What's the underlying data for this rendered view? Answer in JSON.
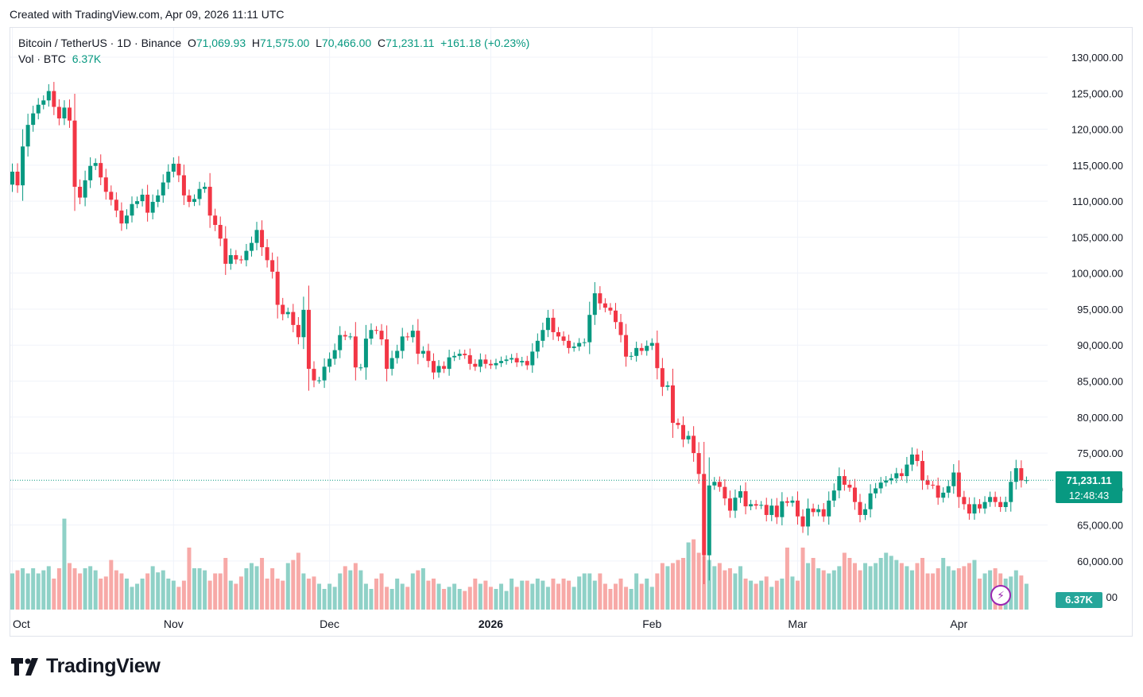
{
  "header": {
    "created": "Created with TradingView.com, Apr 09, 2026 11:11 UTC"
  },
  "legend": {
    "symbol": "Bitcoin / TetherUS · 1D · Binance",
    "open_label": "O",
    "open": "71,069.93",
    "high_label": "H",
    "high": "71,575.00",
    "low_label": "L",
    "low": "70,466.00",
    "close_label": "C",
    "close": "71,231.11",
    "change": "+161.18 (+0.23%)",
    "vol_label": "Vol · BTC",
    "vol": "6.37K"
  },
  "price_tag": {
    "price": "71,231.11",
    "countdown": "12:48:43"
  },
  "vol_tag": "6.37K",
  "footer": {
    "brand": "TradingView"
  },
  "colors": {
    "up": "#089981",
    "down": "#f23645",
    "vol_up": "#8fd1c7",
    "vol_down": "#f7a9a7",
    "grid": "#f0f3fa"
  },
  "chart_data": {
    "type": "candlestick",
    "symbol": "BTCUSDT",
    "interval": "1D",
    "x_labels": [
      {
        "label": "Oct",
        "index": 0
      },
      {
        "label": "Nov",
        "index": 31
      },
      {
        "label": "Dec",
        "index": 61
      },
      {
        "label": "2026",
        "index": 92,
        "bold": true
      },
      {
        "label": "Feb",
        "index": 123
      },
      {
        "label": "Mar",
        "index": 151
      },
      {
        "label": "Apr",
        "index": 182
      }
    ],
    "y_ticks": [
      60000,
      65000,
      70000,
      75000,
      80000,
      85000,
      90000,
      95000,
      100000,
      105000,
      110000,
      115000,
      120000,
      125000,
      130000
    ],
    "y_tick_labels": [
      "60,000.00",
      "65,000.00",
      "70,000.00",
      "75,000.00",
      "80,000.00",
      "85,000.00",
      "90,000.00",
      "95,000.00",
      "100,000.00",
      "105,000.00",
      "110,000.00",
      "115,000.00",
      "120,000.00",
      "125,000.00",
      "130,000.00"
    ],
    "bottom_tick_label": "00",
    "ylim": [
      56000,
      132000
    ],
    "last_price": 71231.11,
    "closes": [
      114100,
      112200,
      117600,
      120600,
      122200,
      123400,
      124000,
      125300,
      123100,
      121500,
      123000,
      121200,
      112000,
      110500,
      112900,
      114900,
      115300,
      113300,
      111300,
      110200,
      108700,
      106900,
      108000,
      109600,
      110000,
      110900,
      108400,
      109900,
      110800,
      112600,
      114100,
      115200,
      113600,
      110800,
      109900,
      110300,
      111700,
      112000,
      108000,
      106700,
      104800,
      101300,
      102500,
      101900,
      101800,
      103100,
      104200,
      106000,
      103600,
      101800,
      100200,
      95600,
      94300,
      94600,
      92800,
      91100,
      94900,
      86700,
      85100,
      85100,
      87000,
      88100,
      89300,
      91400,
      91200,
      91200,
      86900,
      86900,
      90900,
      92100,
      92000,
      90800,
      86700,
      88200,
      89200,
      91200,
      91100,
      92000,
      88800,
      89200,
      87800,
      86200,
      87100,
      86700,
      88300,
      88500,
      88800,
      88600,
      87400,
      87000,
      88000,
      87400,
      87200,
      87500,
      87800,
      88000,
      88200,
      87600,
      87800,
      87200,
      89100,
      90600,
      92100,
      93800,
      91800,
      91200,
      90600,
      89600,
      89800,
      90300,
      90400,
      94200,
      97200,
      95800,
      95200,
      94800,
      93200,
      91400,
      88400,
      88500,
      89600,
      89200,
      89900,
      90300,
      86800,
      84200,
      84400,
      79200,
      78900,
      76900,
      77400,
      75000,
      72100,
      60800,
      70500,
      71000,
      70300,
      68700,
      67000,
      68800,
      69700,
      67600,
      67900,
      67700,
      67800,
      66400,
      67700,
      66100,
      68300,
      68100,
      68400,
      66200,
      64800,
      67300,
      66800,
      67200,
      66200,
      68400,
      69800,
      71800,
      70600,
      70200,
      68200,
      66400,
      67200,
      69400,
      70100,
      70900,
      71200,
      71500,
      72200,
      71800,
      73400,
      74800,
      73900,
      71200,
      70600,
      70500,
      68800,
      69500,
      70400,
      72300,
      68900,
      67900,
      66600,
      67900,
      67300,
      68200,
      68900,
      68200,
      67500,
      68200,
      71000,
      72900,
      71200,
      71231
    ],
    "volumes_relative": [
      0.35,
      0.38,
      0.4,
      0.35,
      0.4,
      0.35,
      0.38,
      0.42,
      0.3,
      0.4,
      0.88,
      0.45,
      0.4,
      0.35,
      0.4,
      0.42,
      0.38,
      0.3,
      0.32,
      0.48,
      0.38,
      0.35,
      0.3,
      0.22,
      0.25,
      0.3,
      0.35,
      0.42,
      0.36,
      0.38,
      0.3,
      0.28,
      0.22,
      0.28,
      0.6,
      0.4,
      0.4,
      0.38,
      0.28,
      0.35,
      0.35,
      0.5,
      0.28,
      0.25,
      0.32,
      0.4,
      0.45,
      0.42,
      0.5,
      0.3,
      0.4,
      0.3,
      0.28,
      0.45,
      0.48,
      0.55,
      0.35,
      0.3,
      0.32,
      0.25,
      0.2,
      0.25,
      0.22,
      0.35,
      0.42,
      0.38,
      0.45,
      0.38,
      0.25,
      0.2,
      0.3,
      0.35,
      0.22,
      0.2,
      0.3,
      0.25,
      0.22,
      0.35,
      0.38,
      0.4,
      0.28,
      0.3,
      0.25,
      0.2,
      0.22,
      0.25,
      0.2,
      0.18,
      0.22,
      0.3,
      0.25,
      0.28,
      0.22,
      0.2,
      0.25,
      0.18,
      0.3,
      0.22,
      0.28,
      0.28,
      0.25,
      0.3,
      0.28,
      0.22,
      0.3,
      0.25,
      0.3,
      0.28,
      0.22,
      0.32,
      0.35,
      0.35,
      0.28,
      0.35,
      0.25,
      0.2,
      0.25,
      0.3,
      0.22,
      0.2,
      0.35,
      0.25,
      0.3,
      0.22,
      0.35,
      0.45,
      0.42,
      0.45,
      0.48,
      0.5,
      0.65,
      0.68,
      0.55,
      0.52,
      0.48,
      0.42,
      0.45,
      0.38,
      0.4,
      0.35,
      0.42,
      0.3,
      0.28,
      0.25,
      0.28,
      0.32,
      0.22,
      0.28,
      0.3,
      0.6,
      0.32,
      0.28,
      0.6,
      0.45,
      0.5,
      0.4,
      0.38,
      0.35,
      0.38,
      0.42,
      0.55,
      0.5,
      0.45,
      0.38,
      0.45,
      0.42,
      0.45,
      0.5,
      0.55,
      0.52,
      0.48,
      0.45,
      0.42,
      0.38,
      0.45,
      0.5,
      0.35,
      0.35,
      0.4,
      0.5,
      0.42,
      0.38,
      0.4,
      0.42,
      0.45,
      0.48,
      0.3,
      0.35,
      0.38,
      0.4,
      0.35,
      0.3,
      0.32,
      0.38,
      0.33,
      0.25
    ]
  }
}
